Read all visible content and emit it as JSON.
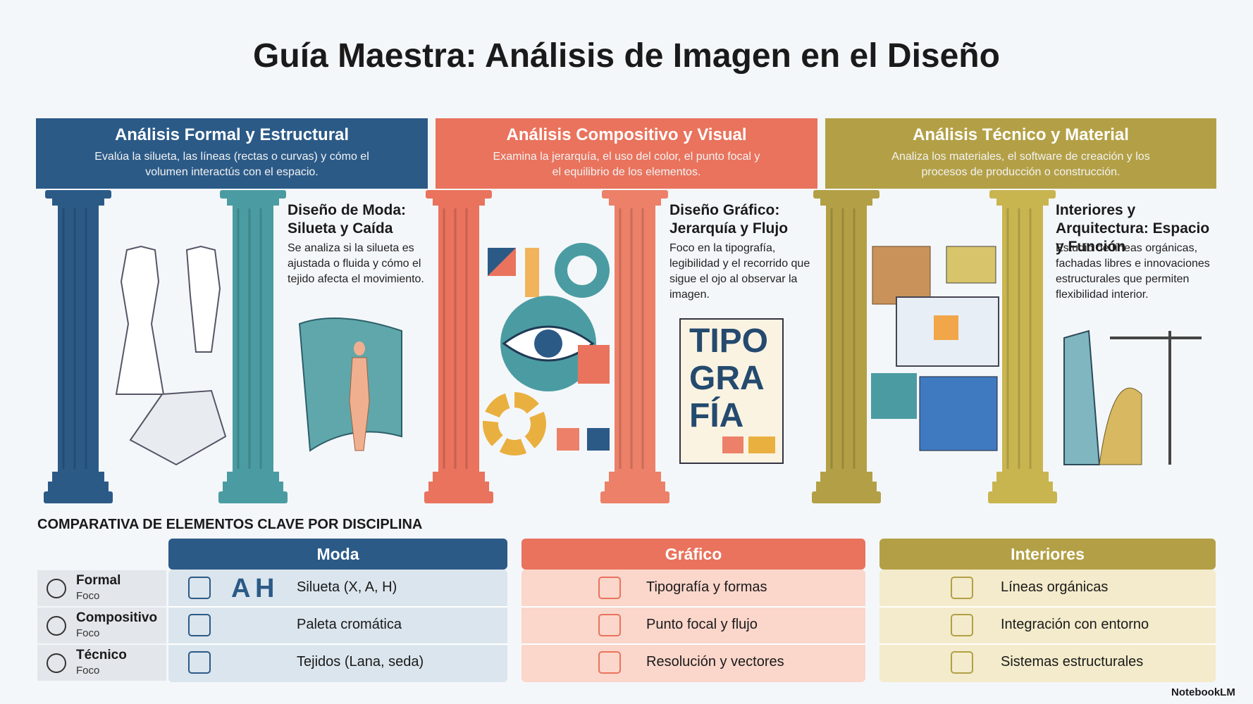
{
  "title": "Guía Maestra: Análisis de Imagen en el Diseño",
  "sections": [
    {
      "header": "Análisis Formal y Estructural",
      "description": "Evalúa la silueta, las líneas (rectas o curvas) y cómo el volumen interactús con el espacio.",
      "subtitle": "Diseño de Moda: Silueta y Caída",
      "text": "Se analiza si la silueta es ajustada o fluida y cómo el tejido afecta el movimiento."
    },
    {
      "header": "Análisis Compositivo y Visual",
      "description": "Examina la jerarquía, el uso del color, el punto focal y el equilibrio de los elementos.",
      "subtitle": "Diseño Gráfico: Jerarquía y Flujo",
      "text": "Foco en la tipografía, legibilidad y el recorrido que sigue el ojo al observar la imagen.",
      "illustration_text": [
        "TIPO",
        "GRA",
        "FÍA"
      ]
    },
    {
      "header": "Análisis Técnico y Material",
      "description": "Analiza los materiales, el software de creación y los procesos de producción o construcción.",
      "subtitle": "Interiores y Arquitectura: Espacio y Función",
      "text": "Estudio de líneas orgánicas, fachadas libres e innovaciones estructurales que permiten flexibilidad interior."
    }
  ],
  "comparison": {
    "title": "COMPARATIVA DE ELEMENTOS CLAVE POR DISCIPLINA",
    "columns": [
      "Moda",
      "Gráfico",
      "Interiores"
    ],
    "rows": [
      {
        "label": "Formal",
        "sublabel": "Foco",
        "glyphs": [
          "A",
          "H"
        ],
        "cells": [
          "Silueta (X, A, H)",
          "Tipografía y formas",
          "Líneas orgánicas"
        ]
      },
      {
        "label": "Compositivo",
        "sublabel": "Foco",
        "cells": [
          "Paleta cromática",
          "Punto focal y flujo",
          "Integración con entorno"
        ]
      },
      {
        "label": "Técnico",
        "sublabel": "Foco",
        "cells": [
          "Tejidos (Lana, seda)",
          "Resolución y vectores",
          "Sistemas estructurales"
        ]
      }
    ]
  },
  "footer": "NotebookLM"
}
